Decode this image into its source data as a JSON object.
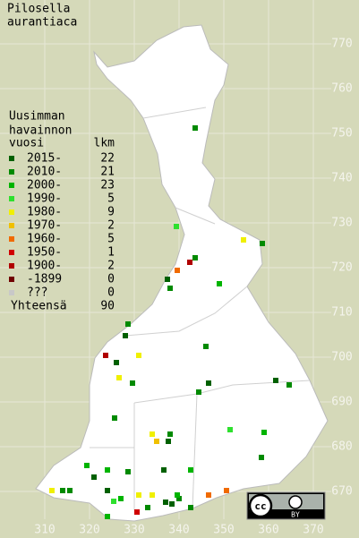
{
  "map": {
    "title": [
      "Pilosella",
      "aurantiaca"
    ],
    "xlim": [
      300,
      380.2
    ],
    "ylim": [
      659.6,
      779.8
    ],
    "xticks": [
      310,
      320,
      330,
      340,
      350,
      360,
      370
    ],
    "yticks": [
      670,
      680,
      690,
      700,
      710,
      720,
      730,
      740,
      750,
      760,
      770
    ],
    "legend": {
      "title": [
        "Uusimman",
        "havainnon",
        "vuosi"
      ],
      "count_header": "lkm",
      "entries": [
        {
          "label": "2015-",
          "count": 22,
          "color": "#006000",
          "points": [
            [
              336.6,
              674.8
            ],
            [
              337.4,
              717.4
            ],
            [
              328,
              704.8
            ],
            [
              326,
              698.8
            ],
            [
              361.6,
              694.8
            ],
            [
              346.6,
              694.2
            ],
            [
              337.6,
              681.2
            ],
            [
              321,
              673.2
            ],
            [
              324,
              670.2
            ],
            [
              337,
              667.6
            ],
            [
              338.4,
              667.2
            ]
          ]
        },
        {
          "label": "2010-",
          "count": 21,
          "color": "#008a00",
          "points": [
            [
              343.6,
              751.2
            ],
            [
              358.6,
              725.4
            ],
            [
              343.6,
              722.2
            ],
            [
              338,
              715.4
            ],
            [
              328.6,
              707.4
            ],
            [
              346,
              702.4
            ],
            [
              364.6,
              693.8
            ],
            [
              329.6,
              694.2
            ],
            [
              344.4,
              692.2
            ],
            [
              325.6,
              686.4
            ],
            [
              338,
              682.8
            ],
            [
              358.4,
              677.6
            ],
            [
              328.6,
              674.4
            ],
            [
              314,
              670.2
            ],
            [
              315.6,
              670.2
            ],
            [
              340,
              668.4
            ],
            [
              333,
              666.4
            ],
            [
              342.6,
              666.4
            ]
          ]
        },
        {
          "label": "2000-",
          "count": 23,
          "color": "#00b400",
          "points": [
            [
              349,
              716.4
            ],
            [
              359,
              683.2
            ],
            [
              319.4,
              675.8
            ],
            [
              324,
              674.8
            ],
            [
              342.6,
              674.8
            ],
            [
              339.6,
              669.2
            ],
            [
              324,
              664.4
            ],
            [
              327,
              668.4
            ]
          ]
        },
        {
          "label": "1990-",
          "count": 5,
          "color": "#2ee02e",
          "points": [
            [
              339.4,
              729.2
            ],
            [
              351.4,
              683.8
            ],
            [
              325.4,
              667.8
            ]
          ]
        },
        {
          "label": "1980-",
          "count": 9,
          "color": "#f0f000",
          "points": [
            [
              354.4,
              726.2
            ],
            [
              331,
              700.4
            ],
            [
              326.6,
              695.4
            ],
            [
              334,
              682.8
            ],
            [
              331,
              669.2
            ],
            [
              334,
              669.2
            ],
            [
              311.6,
              670.2
            ]
          ]
        },
        {
          "label": "1970-",
          "count": 2,
          "color": "#f0c000",
          "points": [
            [
              335,
              681.2
            ]
          ]
        },
        {
          "label": "1960-",
          "count": 5,
          "color": "#f06a00",
          "points": [
            [
              339.6,
              719.4
            ],
            [
              346.6,
              669.2
            ],
            [
              350.6,
              670.2
            ]
          ]
        },
        {
          "label": "1950-",
          "count": 1,
          "color": "#d00000",
          "points": [
            [
              330.6,
              665.4
            ]
          ]
        },
        {
          "label": "1900-",
          "count": 2,
          "color": "#b00000",
          "points": [
            [
              342.4,
              721.2
            ],
            [
              323.6,
              700.4
            ]
          ]
        },
        {
          "label": "-1899",
          "count": 0,
          "color": "#700000",
          "points": []
        },
        {
          "label": "???",
          "count": 0,
          "color": "#c8c8c8",
          "points": []
        }
      ],
      "total_label": "Yhteensä",
      "total": 90
    },
    "license_badge": "BY"
  }
}
